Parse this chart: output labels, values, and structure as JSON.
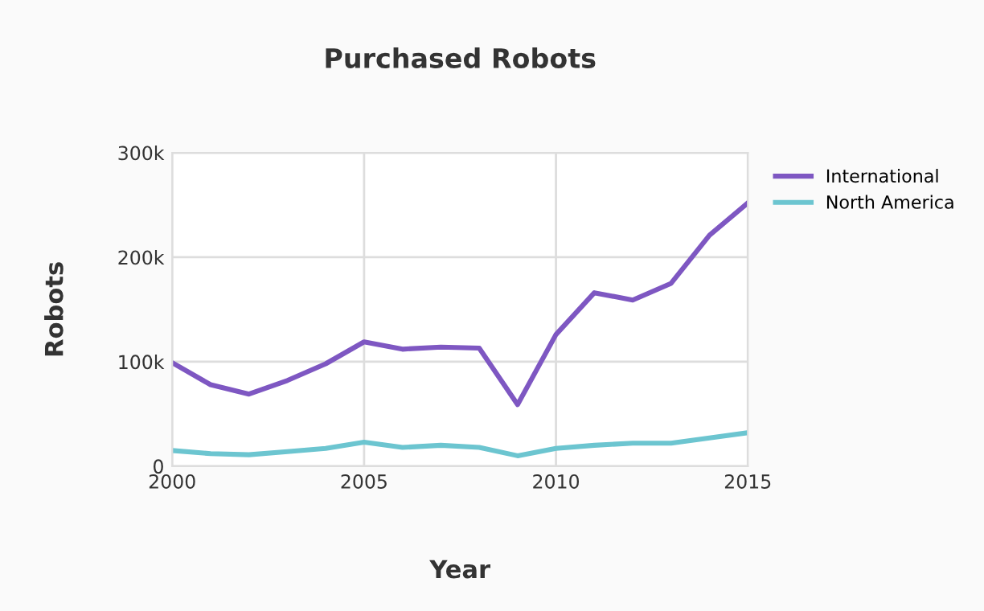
{
  "chart_data": {
    "type": "line",
    "title": "Purchased Robots",
    "xlabel": "Year",
    "ylabel": "Robots",
    "x": [
      2000,
      2001,
      2002,
      2003,
      2004,
      2005,
      2006,
      2007,
      2008,
      2009,
      2010,
      2011,
      2012,
      2013,
      2014,
      2015
    ],
    "series": [
      {
        "name": "International",
        "color": "#7e57c2",
        "values": [
          99000,
          78000,
          69000,
          82000,
          98000,
          119000,
          112000,
          114000,
          113000,
          59000,
          126000,
          166000,
          159000,
          175000,
          221000,
          252000
        ]
      },
      {
        "name": "North America",
        "color": "#6cc5d0",
        "values": [
          15000,
          12000,
          11000,
          14000,
          17000,
          23000,
          18000,
          20000,
          18000,
          10000,
          17000,
          20000,
          22000,
          22000,
          27000,
          32000
        ]
      }
    ],
    "xlim": [
      2000,
      2015
    ],
    "xticks": [
      2000,
      2005,
      2010,
      2015
    ],
    "ylim": [
      0,
      300000
    ],
    "yticks": [
      0,
      {
        "value": 100000,
        "label": "100k"
      },
      {
        "value": 200000,
        "label": "200k"
      },
      {
        "value": 300000,
        "label": "300k"
      }
    ],
    "grid": true,
    "legend": "top right",
    "marker": "none",
    "line_style": "solid"
  }
}
